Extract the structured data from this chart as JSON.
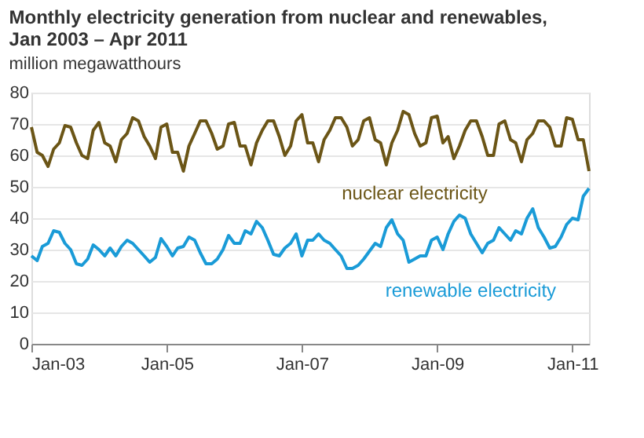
{
  "chart_data": {
    "type": "line",
    "title": [
      "Monthly electricity generation from nuclear and renewables,",
      "Jan 2003 – Apr 2011"
    ],
    "subtitle": "million megawatthours",
    "x": [
      "2003-01",
      "2003-02",
      "2003-03",
      "2003-04",
      "2003-05",
      "2003-06",
      "2003-07",
      "2003-08",
      "2003-09",
      "2003-10",
      "2003-11",
      "2003-12",
      "2004-01",
      "2004-02",
      "2004-03",
      "2004-04",
      "2004-05",
      "2004-06",
      "2004-07",
      "2004-08",
      "2004-09",
      "2004-10",
      "2004-11",
      "2004-12",
      "2005-01",
      "2005-02",
      "2005-03",
      "2005-04",
      "2005-05",
      "2005-06",
      "2005-07",
      "2005-08",
      "2005-09",
      "2005-10",
      "2005-11",
      "2005-12",
      "2006-01",
      "2006-02",
      "2006-03",
      "2006-04",
      "2006-05",
      "2006-06",
      "2006-07",
      "2006-08",
      "2006-09",
      "2006-10",
      "2006-11",
      "2006-12",
      "2007-01",
      "2007-02",
      "2007-03",
      "2007-04",
      "2007-05",
      "2007-06",
      "2007-07",
      "2007-08",
      "2007-09",
      "2007-10",
      "2007-11",
      "2007-12",
      "2008-01",
      "2008-02",
      "2008-03",
      "2008-04",
      "2008-05",
      "2008-06",
      "2008-07",
      "2008-08",
      "2008-09",
      "2008-10",
      "2008-11",
      "2008-12",
      "2009-01",
      "2009-02",
      "2009-03",
      "2009-04",
      "2009-05",
      "2009-06",
      "2009-07",
      "2009-08",
      "2009-09",
      "2009-10",
      "2009-11",
      "2009-12",
      "2010-01",
      "2010-02",
      "2010-03",
      "2010-04",
      "2010-05",
      "2010-06",
      "2010-07",
      "2010-08",
      "2010-09",
      "2010-10",
      "2010-11",
      "2010-12",
      "2011-01",
      "2011-02",
      "2011-03",
      "2011-04"
    ],
    "series": [
      {
        "name": "nuclear electricity",
        "color": "#6b5516",
        "values": [
          69,
          61,
          60,
          56.5,
          62,
          64,
          69.5,
          69,
          64,
          60,
          59,
          68,
          70.5,
          64,
          63,
          58,
          65,
          67,
          72,
          71,
          66,
          63,
          59,
          69,
          70,
          61,
          61,
          55,
          63,
          67,
          71,
          71,
          67,
          62,
          63,
          70,
          70.5,
          63,
          63,
          57,
          64,
          68,
          71,
          71,
          66,
          60,
          63,
          71,
          73,
          64,
          64,
          58,
          65,
          68,
          72,
          72,
          69,
          63,
          65,
          71,
          72,
          65,
          64,
          57,
          64,
          68,
          74,
          73,
          67,
          63,
          64,
          72,
          72.5,
          64,
          66,
          59,
          63,
          68,
          71,
          71,
          66,
          60,
          60,
          70,
          71,
          65,
          64,
          58,
          65,
          67,
          71,
          71,
          69,
          63,
          63,
          72,
          71.5,
          65,
          65,
          55
        ]
      },
      {
        "name": "renewable electricity",
        "color": "#1a9bd7",
        "values": [
          28,
          26.5,
          31,
          32,
          36,
          35.5,
          32,
          30,
          25.5,
          25,
          27,
          31.5,
          30,
          28,
          30.5,
          28,
          31,
          33,
          32,
          30,
          28,
          26,
          27.5,
          33.5,
          31,
          28,
          30.5,
          31,
          34,
          33,
          29,
          25.5,
          25.5,
          27,
          30,
          34.5,
          32,
          32,
          36,
          35,
          39,
          37,
          33,
          28.5,
          28,
          30.5,
          32,
          35,
          28,
          33,
          33,
          35,
          33,
          32,
          30,
          28,
          24,
          24,
          25,
          27,
          29.5,
          32,
          31,
          37,
          39.5,
          35,
          33,
          26,
          27,
          28,
          28,
          33,
          34,
          30,
          35,
          39,
          41,
          40,
          35,
          32,
          29,
          32,
          33,
          37,
          35,
          33,
          36,
          35,
          40,
          43,
          37,
          34,
          30.5,
          31,
          34,
          38,
          40,
          39.5,
          47,
          49.5
        ]
      }
    ],
    "xlim": [
      "2003-01",
      "2011-04"
    ],
    "xticks": [
      {
        "value": "2003-01",
        "label": "Jan-03"
      },
      {
        "value": "2005-01",
        "label": "Jan-05"
      },
      {
        "value": "2007-01",
        "label": "Jan-07"
      },
      {
        "value": "2009-01",
        "label": "Jan-09"
      },
      {
        "value": "2011-01",
        "label": "Jan-11"
      }
    ],
    "ylim": [
      0,
      80
    ],
    "yticks": [
      0,
      10,
      20,
      30,
      40,
      50,
      60,
      70,
      80
    ],
    "grid": "y",
    "marker": "none",
    "line_style": "solid"
  }
}
